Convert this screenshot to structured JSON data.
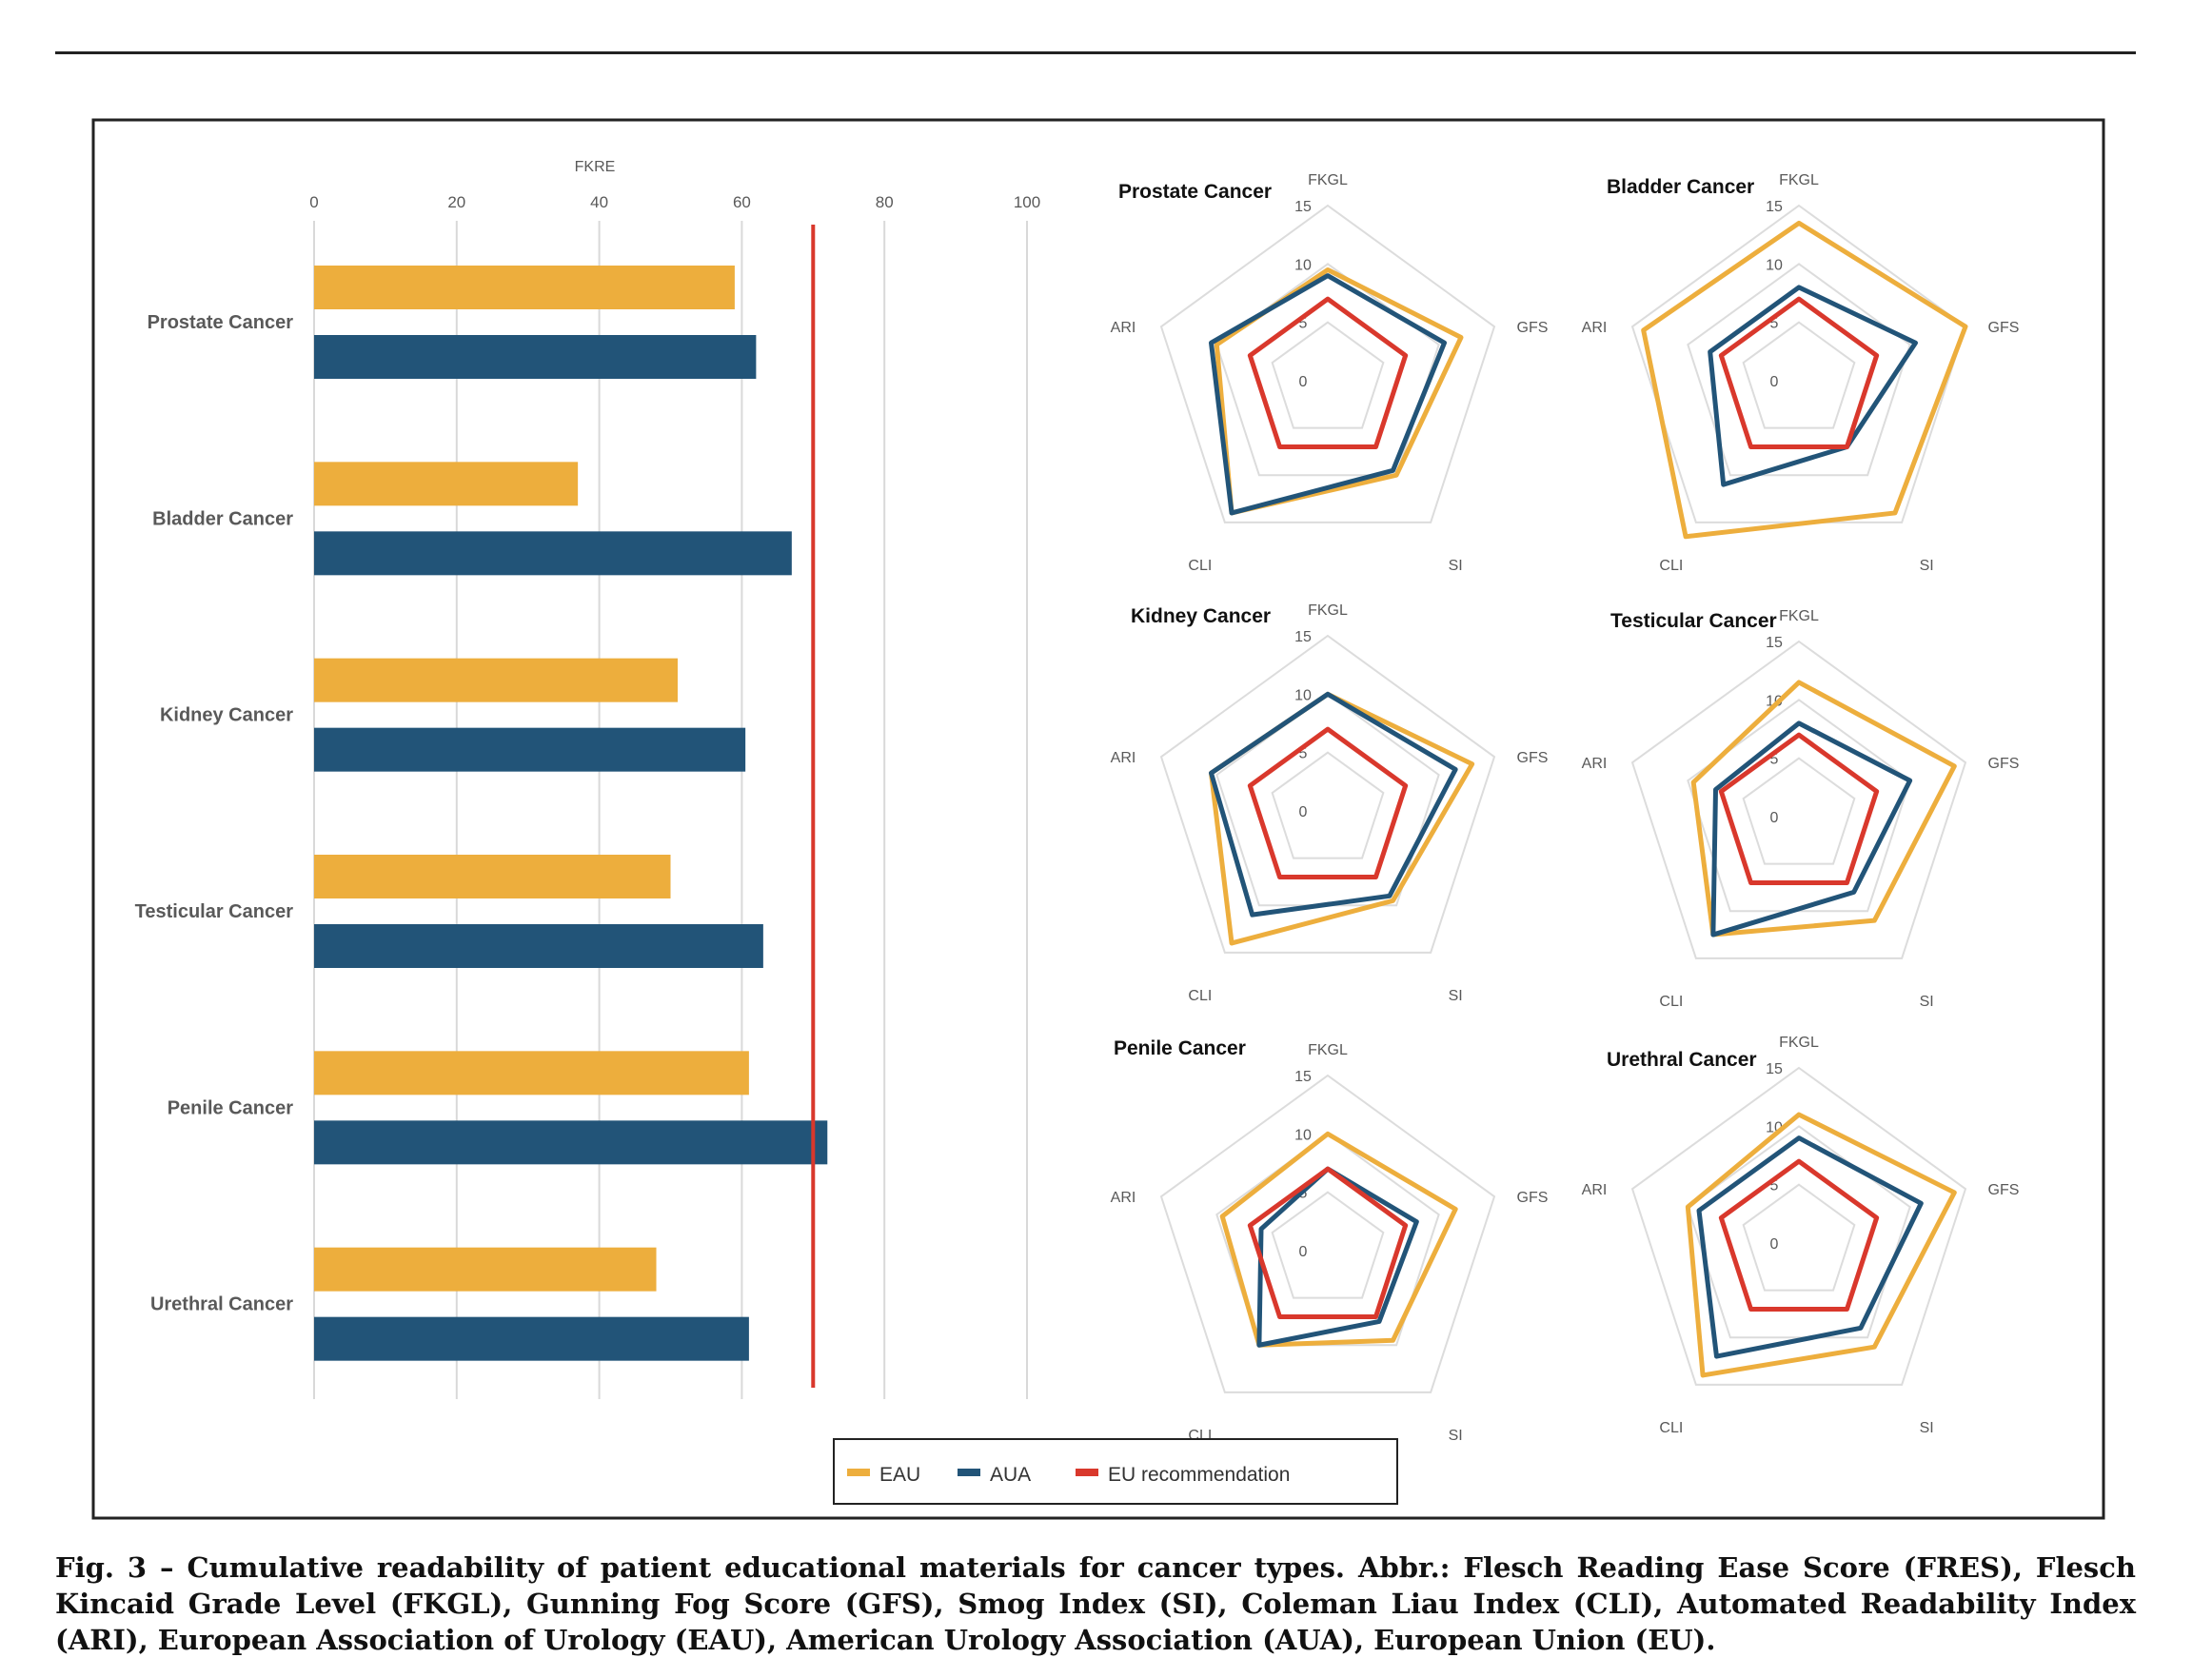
{
  "colors": {
    "EAU": "#EDAE3D",
    "AUA": "#225478",
    "EU": "#D9382C",
    "grid": "#d9d9d9"
  },
  "chart_data": [
    {
      "type": "bar",
      "orientation": "horizontal",
      "title": "",
      "xlabel": "FKRE",
      "xlim": [
        0,
        100
      ],
      "xticks": [
        "0",
        "20",
        "40",
        "60",
        "80",
        "100"
      ],
      "categories": [
        "Prostate Cancer",
        "Bladder Cancer",
        "Kidney Cancer",
        "Testicular Cancer",
        "Penile Cancer",
        "Urethral Cancer"
      ],
      "series": [
        {
          "name": "EAU",
          "values": [
            59,
            37,
            51,
            50,
            61,
            48
          ]
        },
        {
          "name": "AUA",
          "values": [
            62,
            67,
            60.5,
            63,
            72,
            61
          ]
        }
      ],
      "reference_line": {
        "name": "EU recommendation",
        "value": 70
      },
      "grid": true
    },
    {
      "type": "radar",
      "title": "Prostate Cancer",
      "axes": [
        "FKGL",
        "GFS",
        "SI",
        "CLI",
        "ARI"
      ],
      "rticks": [
        "0",
        "5",
        "10",
        "15"
      ],
      "rlim": [
        0,
        15
      ],
      "series": [
        {
          "name": "EAU",
          "values": [
            9.5,
            12,
            10,
            14,
            10
          ]
        },
        {
          "name": "AUA",
          "values": [
            9,
            10.5,
            9.5,
            14,
            10.5
          ]
        },
        {
          "name": "EU recommendation",
          "values": [
            7,
            7,
            7,
            7,
            7
          ]
        }
      ]
    },
    {
      "type": "radar",
      "title": "Bladder Cancer",
      "axes": [
        "FKGL",
        "GFS",
        "SI",
        "CLI",
        "ARI"
      ],
      "rticks": [
        "0",
        "5",
        "10",
        "15"
      ],
      "rlim": [
        0,
        15
      ],
      "series": [
        {
          "name": "EAU",
          "values": [
            13.5,
            15,
            14,
            16.5,
            14
          ]
        },
        {
          "name": "AUA",
          "values": [
            8,
            10.5,
            7,
            11,
            8
          ]
        },
        {
          "name": "EU recommendation",
          "values": [
            7,
            7,
            7,
            7,
            7
          ]
        }
      ]
    },
    {
      "type": "radar",
      "title": "Kidney Cancer",
      "axes": [
        "FKGL",
        "GFS",
        "SI",
        "CLI",
        "ARI"
      ],
      "rticks": [
        "0",
        "5",
        "10",
        "15"
      ],
      "rlim": [
        0,
        15
      ],
      "series": [
        {
          "name": "EAU",
          "values": [
            10,
            13,
            9.5,
            14,
            10.5
          ]
        },
        {
          "name": "AUA",
          "values": [
            10,
            11.5,
            9,
            11,
            10.5
          ]
        },
        {
          "name": "EU recommendation",
          "values": [
            7,
            7,
            7,
            7,
            7
          ]
        }
      ]
    },
    {
      "type": "radar",
      "title": "Testicular Cancer",
      "axes": [
        "FKGL",
        "GFS",
        "SI",
        "CLI",
        "ARI"
      ],
      "rticks": [
        "0",
        "5",
        "10",
        "15"
      ],
      "rlim": [
        0,
        15
      ],
      "series": [
        {
          "name": "EAU",
          "values": [
            11.5,
            14,
            11,
            12.5,
            9.5
          ]
        },
        {
          "name": "AUA",
          "values": [
            8,
            10,
            8,
            12.5,
            7.5
          ]
        },
        {
          "name": "EU recommendation",
          "values": [
            7,
            7,
            7,
            7,
            7
          ]
        }
      ]
    },
    {
      "type": "radar",
      "title": "Penile Cancer",
      "axes": [
        "FKGL",
        "GFS",
        "SI",
        "CLI",
        "ARI"
      ],
      "rticks": [
        "0",
        "5",
        "10",
        "15"
      ],
      "rlim": [
        0,
        15
      ],
      "series": [
        {
          "name": "EAU",
          "values": [
            10,
            11.5,
            9.5,
            10,
            9.5
          ]
        },
        {
          "name": "AUA",
          "values": [
            7,
            8,
            7.5,
            10,
            6
          ]
        },
        {
          "name": "EU recommendation",
          "values": [
            7,
            7,
            7,
            7,
            7
          ]
        }
      ]
    },
    {
      "type": "radar",
      "title": "Urethral Cancer",
      "axes": [
        "FKGL",
        "GFS",
        "SI",
        "CLI",
        "ARI"
      ],
      "rticks": [
        "0",
        "5",
        "10",
        "15"
      ],
      "rlim": [
        0,
        15
      ],
      "series": [
        {
          "name": "EAU",
          "values": [
            11,
            14,
            11,
            14,
            10
          ]
        },
        {
          "name": "AUA",
          "values": [
            9,
            11,
            9,
            12,
            9
          ]
        },
        {
          "name": "EU recommendation",
          "values": [
            7,
            7,
            7,
            7,
            7
          ]
        }
      ]
    }
  ],
  "legend": [
    "EAU",
    "AUA",
    "EU recommendation"
  ],
  "caption": "Fig. 3 – Cumulative readability of patient educational materials for cancer types. Abbr.: Flesch Reading Ease Score (FRES), Flesch Kincaid Grade Level (FKGL), Gunning Fog Score (GFS), Smog Index (SI), Coleman Liau Index (CLI), Automated Readability Index (ARI), European Association of Urology (EAU), American Urology Association (AUA), European Union (EU)."
}
